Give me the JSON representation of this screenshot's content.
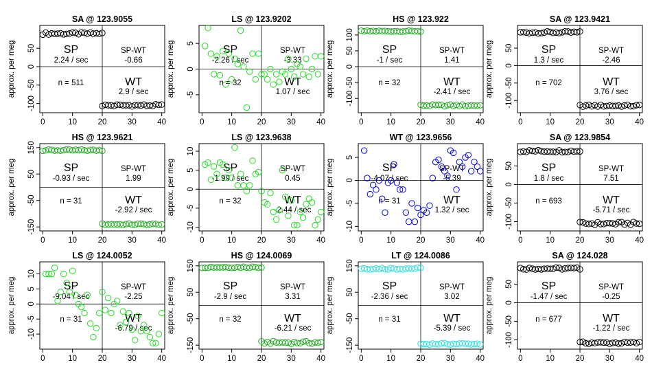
{
  "chart_data": [
    {
      "type": "scatter",
      "title": "SA @ 123.9055",
      "ylabel": "approx. per meg",
      "color": "#000000",
      "xlim": [
        -1,
        41
      ],
      "ylim": [
        -125,
        112
      ],
      "xticks": [
        0,
        10,
        20,
        30,
        40
      ],
      "yticks": [
        -100,
        -50,
        0,
        50
      ],
      "sp_rate": "2.24 / sec",
      "diff": "-0.66",
      "n": "n = 511",
      "wt_rate": "2.9 / sec",
      "seg1": {
        "x0": 0,
        "n": 21,
        "base": 90,
        "amp": 3
      },
      "seg2": {
        "x0": 20,
        "n": 21,
        "base": -105,
        "amp": 3
      }
    },
    {
      "type": "scatter",
      "title": "LS @ 123.9202",
      "ylabel": "approx. per meg",
      "color": "#22dd22",
      "xlim": [
        -1,
        41
      ],
      "ylim": [
        -8.5,
        8.5
      ],
      "xticks": [
        0,
        10,
        20,
        30,
        40
      ],
      "yticks": [
        -5,
        0,
        5
      ],
      "sp_rate": "-2.26 / sec",
      "diff": "-3.33",
      "n": "n = 32",
      "wt_rate": "1.07 / sec",
      "points": [
        [
          1,
          4.5
        ],
        [
          2,
          8
        ],
        [
          3,
          3
        ],
        [
          4,
          -1
        ],
        [
          5,
          2.5
        ],
        [
          6,
          -1.2
        ],
        [
          7,
          3.5
        ],
        [
          8,
          -3
        ],
        [
          9,
          3
        ],
        [
          10,
          -2
        ],
        [
          11,
          2
        ],
        [
          12,
          1
        ],
        [
          13,
          7.5
        ],
        [
          14,
          0.5
        ],
        [
          15,
          -7.5
        ],
        [
          16,
          -0.5
        ],
        [
          17,
          3
        ],
        [
          18,
          -2
        ],
        [
          19,
          3
        ],
        [
          20,
          -1
        ],
        [
          21,
          -1
        ],
        [
          22,
          -2
        ],
        [
          23,
          0
        ],
        [
          24,
          -3
        ],
        [
          25,
          -1
        ],
        [
          26,
          -2.5
        ],
        [
          27,
          -0.5
        ],
        [
          28,
          -1
        ],
        [
          29,
          2
        ],
        [
          30,
          0
        ],
        [
          31,
          -1.5
        ],
        [
          32,
          1
        ],
        [
          33,
          0.5
        ],
        [
          34,
          -1
        ],
        [
          35,
          2
        ],
        [
          36,
          -1.5
        ],
        [
          37,
          0
        ],
        [
          38,
          2.5
        ],
        [
          39,
          -1
        ],
        [
          40,
          2.5
        ]
      ]
    },
    {
      "type": "scatter",
      "title": "HS @ 123.922",
      "ylabel": "approx. per meg",
      "color": "#22aa22",
      "xlim": [
        -1,
        41
      ],
      "ylim": [
        -145,
        130
      ],
      "xticks": [
        0,
        10,
        20,
        30,
        40
      ],
      "yticks": [
        -100,
        -50,
        0,
        50,
        100
      ],
      "sp_rate": "-1 / sec",
      "diff": "1.41",
      "n": "n = 32",
      "wt_rate": "-2.41 / sec",
      "seg1": {
        "x0": 0,
        "n": 21,
        "base": 112,
        "amp": 2
      },
      "seg2": {
        "x0": 20,
        "n": 21,
        "base": -122,
        "amp": 3
      }
    },
    {
      "type": "scatter",
      "title": "SA @ 123.9421",
      "ylabel": "approx. per meg",
      "color": "#000000",
      "xlim": [
        -1,
        41
      ],
      "ylim": [
        -135,
        115
      ],
      "xticks": [
        0,
        10,
        20,
        30,
        40
      ],
      "yticks": [
        -100,
        -50,
        0,
        50
      ],
      "sp_rate": "1.3 / sec",
      "diff": "-2.46",
      "n": "n = 702",
      "wt_rate": "3.76 / sec",
      "seg1": {
        "x0": 0,
        "n": 21,
        "base": 95,
        "amp": 3
      },
      "seg2": {
        "x0": 20,
        "n": 21,
        "base": -115,
        "amp": 3
      }
    },
    {
      "type": "scatter",
      "title": "HS @ 123.9621",
      "ylabel": "approx. per meg",
      "color": "#22aa22",
      "xlim": [
        -1,
        41
      ],
      "ylim": [
        -165,
        165
      ],
      "xticks": [
        0,
        10,
        20,
        30,
        40
      ],
      "yticks": [
        -150,
        -50,
        50,
        150
      ],
      "sp_rate": "-0.93 / sec",
      "diff": "1.99",
      "n": "n = 31",
      "wt_rate": "-2.92 / sec",
      "seg1": {
        "x0": 0,
        "n": 21,
        "base": 140,
        "amp": 3
      },
      "seg2": {
        "x0": 20,
        "n": 21,
        "base": -140,
        "amp": 3
      }
    },
    {
      "type": "scatter",
      "title": "LS @ 123.9638",
      "ylabel": "approx. per meg",
      "color": "#22dd22",
      "xlim": [
        -1,
        41
      ],
      "ylim": [
        -11,
        12
      ],
      "xticks": [
        0,
        10,
        20,
        30,
        40
      ],
      "yticks": [
        -10,
        -5,
        0,
        5,
        10
      ],
      "sp_rate": "-1.99 / sec",
      "diff": "0.45",
      "n": "n = 32",
      "wt_rate": "-2.44 / sec",
      "points": [
        [
          1,
          6.5
        ],
        [
          2,
          7
        ],
        [
          3,
          2.5
        ],
        [
          4,
          6
        ],
        [
          5,
          4
        ],
        [
          6,
          7
        ],
        [
          7,
          6.5
        ],
        [
          8,
          3
        ],
        [
          9,
          5
        ],
        [
          10,
          3
        ],
        [
          11,
          11
        ],
        [
          12,
          1
        ],
        [
          13,
          4
        ],
        [
          14,
          1
        ],
        [
          15,
          -0.5
        ],
        [
          16,
          1
        ],
        [
          17,
          7.5
        ],
        [
          18,
          4
        ],
        [
          19,
          4.5
        ],
        [
          20,
          -0.5
        ],
        [
          21,
          -3.5
        ],
        [
          22,
          -4
        ],
        [
          23,
          -1
        ],
        [
          24,
          -6
        ],
        [
          25,
          -8
        ],
        [
          26,
          -5.5
        ],
        [
          27,
          5
        ],
        [
          28,
          -2
        ],
        [
          29,
          -7
        ],
        [
          30,
          -3
        ],
        [
          31,
          -9.5
        ],
        [
          32,
          -9.5
        ],
        [
          33,
          -6
        ],
        [
          34,
          -7.5
        ],
        [
          35,
          -4
        ],
        [
          36,
          -2.5
        ],
        [
          37,
          -3.5
        ],
        [
          38,
          -9.5
        ],
        [
          39,
          -8
        ],
        [
          40,
          -6
        ]
      ]
    },
    {
      "type": "scatter",
      "title": "WT @ 123.9656",
      "ylabel": "approx. per meg",
      "color": "#0000dd",
      "xlim": [
        -1,
        41
      ],
      "ylim": [
        -11,
        8
      ],
      "xticks": [
        0,
        10,
        20,
        30,
        40
      ],
      "yticks": [
        -10,
        -5,
        0,
        5
      ],
      "sp_rate": "-4.07 / sec",
      "diff": "-5.39",
      "n": "n = 31",
      "wt_rate": "1.32 / sec",
      "points": [
        [
          1,
          6.5
        ],
        [
          2,
          0.5
        ],
        [
          3,
          -3
        ],
        [
          4,
          -1
        ],
        [
          5,
          -2
        ],
        [
          6,
          0
        ],
        [
          7,
          -4
        ],
        [
          8,
          -7
        ],
        [
          9,
          -0.5
        ],
        [
          10,
          0
        ],
        [
          11,
          3.5
        ],
        [
          12,
          -0.5
        ],
        [
          13,
          -2
        ],
        [
          14,
          -2
        ],
        [
          15,
          -7
        ],
        [
          16,
          -9
        ],
        [
          17,
          -5
        ],
        [
          18,
          -9
        ],
        [
          19,
          -6
        ],
        [
          20,
          -7.5
        ],
        [
          21,
          -6.5
        ],
        [
          22,
          -7
        ],
        [
          23,
          -5.5
        ],
        [
          24,
          0.5
        ],
        [
          25,
          4
        ],
        [
          26,
          4.5
        ],
        [
          27,
          3
        ],
        [
          28,
          2
        ],
        [
          29,
          1
        ],
        [
          30,
          6.5
        ],
        [
          31,
          6
        ],
        [
          32,
          -2
        ],
        [
          33,
          4
        ],
        [
          34,
          3
        ],
        [
          35,
          5
        ],
        [
          36,
          5.5
        ],
        [
          37,
          2
        ],
        [
          38,
          4
        ],
        [
          39,
          3
        ],
        [
          40,
          2
        ]
      ]
    },
    {
      "type": "scatter",
      "title": "SA @ 123.9854",
      "ylabel": "approx. per meg",
      "color": "#000000",
      "xlim": [
        -1,
        41
      ],
      "ylim": [
        -125,
        110
      ],
      "xticks": [
        0,
        10,
        20,
        30,
        40
      ],
      "yticks": [
        -100,
        -50,
        0,
        50
      ],
      "sp_rate": "1.8 / sec",
      "diff": "7.51",
      "n": "n = 693",
      "wt_rate": "-5.71 / sec",
      "seg1": {
        "x0": 0,
        "n": 21,
        "base": 90,
        "amp": 3
      },
      "seg2": {
        "x0": 20,
        "n": 21,
        "base": -105,
        "amp": 4
      }
    },
    {
      "type": "scatter",
      "title": "LS @ 124.0052",
      "ylabel": "approx. per meg",
      "color": "#22dd22",
      "xlim": [
        -1,
        41
      ],
      "ylim": [
        -15,
        14
      ],
      "xticks": [
        0,
        10,
        20,
        30,
        40
      ],
      "yticks": [
        -10,
        -5,
        0,
        5,
        10
      ],
      "sp_rate": "-9.04 / sec",
      "diff": "-2.25",
      "n": "n = 31",
      "wt_rate": "-6.79 / sec",
      "points": [
        [
          1,
          10
        ],
        [
          2,
          10
        ],
        [
          3,
          10
        ],
        [
          4,
          12
        ],
        [
          5,
          1
        ],
        [
          6,
          4
        ],
        [
          7,
          10
        ],
        [
          8,
          7
        ],
        [
          9,
          4
        ],
        [
          10,
          11
        ],
        [
          11,
          3
        ],
        [
          12,
          0
        ],
        [
          13,
          -1
        ],
        [
          14,
          -3
        ],
        [
          15,
          3
        ],
        [
          16,
          -6.5
        ],
        [
          17,
          -11
        ],
        [
          18,
          -8
        ],
        [
          19,
          -3
        ],
        [
          20,
          4
        ],
        [
          21,
          -2
        ],
        [
          22,
          2
        ],
        [
          23,
          -3
        ],
        [
          24,
          0
        ],
        [
          25,
          1
        ],
        [
          26,
          -7
        ],
        [
          27,
          -2.5
        ],
        [
          28,
          -6
        ],
        [
          29,
          -3
        ],
        [
          30,
          -8.5
        ],
        [
          31,
          -12
        ],
        [
          32,
          -4
        ],
        [
          33,
          -9
        ],
        [
          34,
          -7
        ],
        [
          35,
          -9
        ],
        [
          36,
          -11
        ],
        [
          37,
          -13
        ],
        [
          38,
          -13
        ],
        [
          39,
          -10
        ],
        [
          40,
          -3
        ]
      ]
    },
    {
      "type": "scatter",
      "title": "HS @ 124.0069",
      "ylabel": "approx. per meg",
      "color": "#22aa22",
      "xlim": [
        -1,
        41
      ],
      "ylim": [
        -165,
        165
      ],
      "xticks": [
        0,
        10,
        20,
        30,
        40
      ],
      "yticks": [
        -150,
        -50,
        50,
        150
      ],
      "sp_rate": "-2.9 / sec",
      "diff": "3.31",
      "n": "n = 32",
      "wt_rate": "-6.21 / sec",
      "seg1": {
        "x0": 0,
        "n": 21,
        "base": 145,
        "amp": 3
      },
      "seg2": {
        "x0": 20,
        "n": 21,
        "base": -140,
        "amp": 5
      }
    },
    {
      "type": "scatter",
      "title": "LT @ 124.0086",
      "ylabel": "approx. per meg",
      "color": "#33dddd",
      "xlim": [
        -1,
        41
      ],
      "ylim": [
        -165,
        165
      ],
      "xticks": [
        0,
        10,
        20,
        30,
        40
      ],
      "yticks": [
        -150,
        -50,
        50,
        150
      ],
      "sp_rate": "-2.36 / sec",
      "diff": "3.02",
      "n": "n = 31",
      "wt_rate": "-5.39 / sec",
      "seg1": {
        "x0": 0,
        "n": 21,
        "base": 140,
        "amp": 4
      },
      "seg2": {
        "x0": 20,
        "n": 21,
        "base": -145,
        "amp": 3
      }
    },
    {
      "type": "scatter",
      "title": "SA @ 124.028",
      "ylabel": "approx. per meg",
      "color": "#000000",
      "xlim": [
        -1,
        41
      ],
      "ylim": [
        -125,
        110
      ],
      "xticks": [
        0,
        10,
        20,
        30,
        40
      ],
      "yticks": [
        -100,
        -50,
        0,
        50
      ],
      "sp_rate": "-1.47 / sec",
      "diff": "-0.25",
      "n": "n = 677",
      "wt_rate": "-1.22 / sec",
      "seg1": {
        "x0": 0,
        "n": 21,
        "base": 92,
        "amp": 3
      },
      "seg2": {
        "x0": 20,
        "n": 21,
        "base": -108,
        "amp": 3
      }
    }
  ],
  "labels": {
    "sp": "SP",
    "wt": "WT",
    "sp_wt": "SP-WT"
  }
}
